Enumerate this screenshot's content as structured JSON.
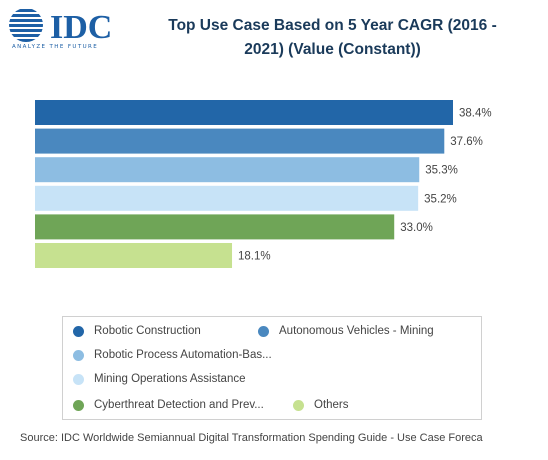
{
  "logo": {
    "name": "IDC",
    "tagline": "ANALYZE THE FUTURE"
  },
  "chart_data": {
    "type": "bar",
    "orientation": "horizontal",
    "title": "Top Use Case Based on 5 Year CAGR (2016 - 2021) (Value (Constant))",
    "title_lines": [
      "Top Use Case Based on 5 Year CAGR (2016 -",
      "2021) (Value (Constant))"
    ],
    "xlim": [
      0,
      40
    ],
    "grid": false,
    "legend_position": "bottom",
    "categories": [
      "Robotic Construction",
      "Autonomous Vehicles - Mining",
      "Robotic Process Automation-Bas...",
      "Mining Operations Assistance",
      "Cyberthreat Detection and Prev...",
      "Others"
    ],
    "values": [
      38.4,
      37.6,
      35.3,
      35.2,
      33.0,
      18.1
    ],
    "labels": [
      "38.4%",
      "37.6%",
      "35.3%",
      "35.2%",
      "33.0%",
      "18.1%"
    ],
    "colors": [
      "#2266a8",
      "#4a88bf",
      "#8dbde2",
      "#c7e3f7",
      "#6fa557",
      "#c6e190"
    ]
  },
  "source": "Source: IDC Worldwide Semiannual Digital Transformation Spending Guide - Use Case Foreca"
}
